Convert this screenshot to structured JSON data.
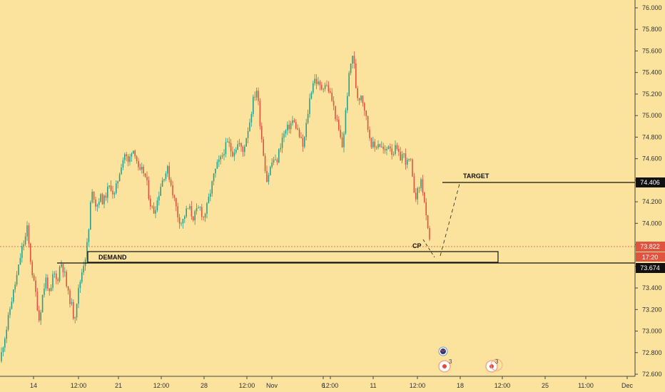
{
  "chart_data": {
    "type": "candlestick",
    "y_axis": {
      "ticks": [
        "76.000",
        "75.800",
        "75.600",
        "75.400",
        "75.200",
        "75.000",
        "74.800",
        "74.600",
        "74.400",
        "74.200",
        "74.000",
        "73.800",
        "73.600",
        "73.400",
        "73.200",
        "73.000",
        "72.800",
        "72.600"
      ],
      "ylim": [
        72.6,
        76.05
      ]
    },
    "x_axis": {
      "ticks": [
        "14",
        "12:00",
        "21",
        "12:00",
        "28",
        "12:00",
        "Nov",
        "6",
        "12:00",
        "11",
        "12:00",
        "18",
        "12:00",
        "25",
        "11:00",
        "Dec"
      ]
    },
    "price_labels": {
      "target": "74.406",
      "last": "73.822",
      "countdown": "17:20",
      "demand": "73.674"
    },
    "annotations": {
      "target": "TARGET",
      "demand": "DEMAND",
      "cp": "CP"
    },
    "event_badges": [
      "3",
      "3"
    ],
    "price_path": [
      [
        0,
        72.72
      ],
      [
        5,
        72.9
      ],
      [
        10,
        73.05
      ],
      [
        15,
        73.25
      ],
      [
        20,
        73.4
      ],
      [
        25,
        73.55
      ],
      [
        30,
        73.75
      ],
      [
        35,
        73.85
      ],
      [
        38,
        73.95
      ],
      [
        42,
        73.7
      ],
      [
        46,
        73.5
      ],
      [
        50,
        73.35
      ],
      [
        55,
        73.1
      ],
      [
        60,
        73.35
      ],
      [
        65,
        73.5
      ],
      [
        70,
        73.3
      ],
      [
        75,
        73.55
      ],
      [
        80,
        73.45
      ],
      [
        85,
        73.65
      ],
      [
        90,
        73.55
      ],
      [
        95,
        73.35
      ],
      [
        100,
        73.25
      ],
      [
        104,
        73.1
      ],
      [
        108,
        73.3
      ],
      [
        112,
        73.45
      ],
      [
        116,
        73.6
      ],
      [
        120,
        73.7
      ],
      [
        124,
        73.9
      ],
      [
        127,
        74.2
      ],
      [
        130,
        74.3
      ],
      [
        135,
        74.15
      ],
      [
        140,
        74.25
      ],
      [
        145,
        74.2
      ],
      [
        150,
        74.3
      ],
      [
        155,
        74.35
      ],
      [
        160,
        74.25
      ],
      [
        165,
        74.4
      ],
      [
        170,
        74.55
      ],
      [
        175,
        74.65
      ],
      [
        180,
        74.55
      ],
      [
        185,
        74.7
      ],
      [
        190,
        74.65
      ],
      [
        195,
        74.45
      ],
      [
        200,
        74.5
      ],
      [
        205,
        74.4
      ],
      [
        210,
        74.2
      ],
      [
        215,
        74.1
      ],
      [
        220,
        74.2
      ],
      [
        225,
        74.35
      ],
      [
        230,
        74.45
      ],
      [
        235,
        74.5
      ],
      [
        240,
        74.35
      ],
      [
        245,
        74.2
      ],
      [
        250,
        74.05
      ],
      [
        255,
        74.0
      ],
      [
        260,
        74.1
      ],
      [
        265,
        74.15
      ],
      [
        270,
        74.05
      ],
      [
        275,
        74.1
      ],
      [
        280,
        74.15
      ],
      [
        285,
        74.05
      ],
      [
        290,
        74.15
      ],
      [
        295,
        74.3
      ],
      [
        300,
        74.45
      ],
      [
        305,
        74.55
      ],
      [
        310,
        74.6
      ],
      [
        315,
        74.7
      ],
      [
        320,
        74.75
      ],
      [
        325,
        74.65
      ],
      [
        330,
        74.7
      ],
      [
        335,
        74.75
      ],
      [
        340,
        74.65
      ],
      [
        345,
        74.8
      ],
      [
        350,
        74.95
      ],
      [
        355,
        75.15
      ],
      [
        360,
        75.25
      ],
      [
        365,
        74.9
      ],
      [
        370,
        74.6
      ],
      [
        374,
        74.4
      ],
      [
        378,
        74.5
      ],
      [
        383,
        74.6
      ],
      [
        387,
        74.55
      ],
      [
        392,
        74.7
      ],
      [
        396,
        74.8
      ],
      [
        400,
        74.85
      ],
      [
        405,
        74.9
      ],
      [
        410,
        74.95
      ],
      [
        415,
        74.9
      ],
      [
        420,
        74.8
      ],
      [
        425,
        74.7
      ],
      [
        430,
        74.95
      ],
      [
        435,
        75.2
      ],
      [
        440,
        75.35
      ],
      [
        445,
        75.3
      ],
      [
        450,
        75.25
      ],
      [
        455,
        75.3
      ],
      [
        460,
        75.25
      ],
      [
        465,
        75.15
      ],
      [
        470,
        75.0
      ],
      [
        475,
        74.85
      ],
      [
        480,
        74.7
      ],
      [
        484,
        75.0
      ],
      [
        488,
        75.3
      ],
      [
        492,
        75.5
      ],
      [
        495,
        75.6
      ],
      [
        498,
        75.3
      ],
      [
        502,
        75.15
      ],
      [
        506,
        75.2
      ],
      [
        510,
        75.1
      ],
      [
        515,
        74.9
      ],
      [
        520,
        74.75
      ],
      [
        525,
        74.7
      ],
      [
        530,
        74.75
      ],
      [
        535,
        74.7
      ],
      [
        540,
        74.65
      ],
      [
        545,
        74.75
      ],
      [
        550,
        74.65
      ],
      [
        555,
        74.7
      ],
      [
        560,
        74.6
      ],
      [
        565,
        74.65
      ],
      [
        570,
        74.55
      ],
      [
        575,
        74.6
      ],
      [
        578,
        74.4
      ],
      [
        582,
        74.25
      ],
      [
        586,
        74.3
      ],
      [
        590,
        74.4
      ],
      [
        594,
        74.25
      ],
      [
        597,
        74.05
      ],
      [
        600,
        73.9
      ],
      [
        602,
        73.82
      ]
    ]
  }
}
